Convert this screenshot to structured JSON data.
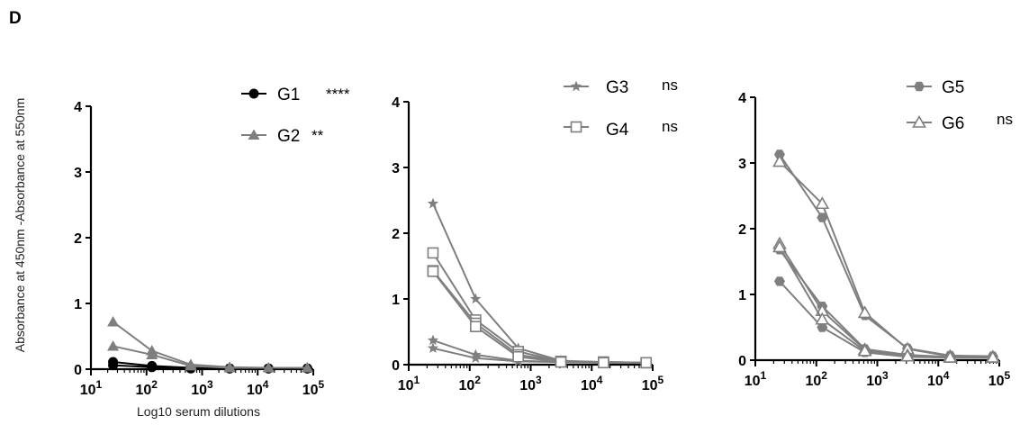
{
  "figure": {
    "panel_label": "D",
    "ylabel": "Absorbance at 450nm -Absorbance at 550nm"
  },
  "colors": {
    "gray": "#7f7f7f",
    "black": "#000000",
    "axis": "#000000"
  },
  "chart_data": [
    {
      "type": "line",
      "xscale": "log",
      "xlim": [
        10,
        100000
      ],
      "ylim": [
        0,
        4
      ],
      "yticks": [
        0,
        1,
        2,
        3,
        4
      ],
      "xticks": [
        10,
        100,
        1000,
        10000,
        100000
      ],
      "xtick_labels": [
        {
          "base": "10",
          "exp": "1"
        },
        {
          "base": "10",
          "exp": "2"
        },
        {
          "base": "10",
          "exp": "3"
        },
        {
          "base": "10",
          "exp": "4"
        },
        {
          "base": "10",
          "exp": "5"
        }
      ],
      "xlabel": "Log10 serum dilutions",
      "series": [
        {
          "name": "G1",
          "significance": "****",
          "marker": "circle",
          "color": "#000000",
          "legend": true,
          "x": [
            25,
            125,
            625,
            3125,
            15625,
            78125
          ],
          "y": [
            0.11,
            0.05,
            0.02,
            0.01,
            0.01,
            0.01
          ]
        },
        {
          "marker": "circle",
          "color": "#000000",
          "legend": false,
          "x": [
            25,
            125,
            625,
            3125,
            15625,
            78125
          ],
          "y": [
            0.06,
            0.03,
            0.01,
            0.01,
            0.01,
            0.01
          ]
        },
        {
          "name": "G2",
          "significance": "**",
          "marker": "triangle",
          "color": "#7f7f7f",
          "legend": true,
          "x": [
            25,
            125,
            625,
            3125,
            15625,
            78125
          ],
          "y": [
            0.72,
            0.28,
            0.07,
            0.03,
            0.02,
            0.02
          ]
        },
        {
          "marker": "triangle",
          "color": "#7f7f7f",
          "legend": false,
          "x": [
            25,
            125,
            625,
            3125,
            15625,
            78125
          ],
          "y": [
            0.35,
            0.22,
            0.05,
            0.02,
            0.02,
            0.02
          ]
        }
      ]
    },
    {
      "type": "line",
      "xscale": "log",
      "xlim": [
        10,
        100000
      ],
      "ylim": [
        0,
        4
      ],
      "yticks": [
        0,
        1,
        2,
        3,
        4
      ],
      "xticks": [
        10,
        100,
        1000,
        10000,
        100000
      ],
      "xtick_labels": [
        {
          "base": "10",
          "exp": "1"
        },
        {
          "base": "10",
          "exp": "2"
        },
        {
          "base": "10",
          "exp": "3"
        },
        {
          "base": "10",
          "exp": "4"
        },
        {
          "base": "10",
          "exp": "5"
        }
      ],
      "xlabel": "",
      "series": [
        {
          "name": "G3",
          "significance": "ns",
          "marker": "star",
          "color": "#7f7f7f",
          "legend": true,
          "x": [
            25,
            125,
            625,
            3125,
            15625,
            78125
          ],
          "y": [
            2.45,
            1.0,
            0.25,
            0.06,
            0.04,
            0.03
          ]
        },
        {
          "marker": "star",
          "color": "#7f7f7f",
          "legend": false,
          "x": [
            25,
            125,
            625,
            3125,
            15625,
            78125
          ],
          "y": [
            0.37,
            0.15,
            0.06,
            0.04,
            0.03,
            0.03
          ]
        },
        {
          "marker": "star",
          "color": "#7f7f7f",
          "legend": false,
          "x": [
            25,
            125,
            625,
            3125,
            15625,
            78125
          ],
          "y": [
            0.25,
            0.1,
            0.05,
            0.04,
            0.03,
            0.03
          ]
        },
        {
          "name": "G4",
          "significance": "ns",
          "marker": "square",
          "color": "#7f7f7f",
          "legend": true,
          "x": [
            25,
            125,
            625,
            3125,
            15625,
            78125
          ],
          "y": [
            1.7,
            0.68,
            0.2,
            0.05,
            0.04,
            0.03
          ]
        },
        {
          "marker": "square",
          "color": "#7f7f7f",
          "legend": false,
          "x": [
            25,
            125,
            625,
            3125,
            15625,
            78125
          ],
          "y": [
            1.43,
            0.63,
            0.15,
            0.05,
            0.04,
            0.03
          ]
        },
        {
          "marker": "square",
          "color": "#7f7f7f",
          "legend": false,
          "x": [
            25,
            125,
            625,
            3125,
            15625,
            78125
          ],
          "y": [
            1.42,
            0.58,
            0.12,
            0.04,
            0.03,
            0.03
          ]
        }
      ]
    },
    {
      "type": "line",
      "xscale": "log",
      "xlim": [
        10,
        100000
      ],
      "ylim": [
        0,
        4
      ],
      "yticks": [
        0,
        1,
        2,
        3,
        4
      ],
      "xticks": [
        10,
        100,
        1000,
        10000,
        100000
      ],
      "xtick_labels": [
        {
          "base": "10",
          "exp": "1"
        },
        {
          "base": "10",
          "exp": "2"
        },
        {
          "base": "10",
          "exp": "3"
        },
        {
          "base": "10",
          "exp": "4"
        },
        {
          "base": "10",
          "exp": "5"
        }
      ],
      "xlabel": "",
      "series": [
        {
          "name": "G5",
          "significance": "",
          "marker": "hexagon",
          "color": "#7f7f7f",
          "legend": true,
          "x": [
            25,
            125,
            625,
            3125,
            15625,
            78125
          ],
          "y": [
            3.13,
            2.17,
            0.68,
            0.18,
            0.07,
            0.06
          ]
        },
        {
          "marker": "hexagon",
          "color": "#7f7f7f",
          "legend": false,
          "x": [
            25,
            125,
            625,
            3125,
            15625,
            78125
          ],
          "y": [
            1.68,
            0.82,
            0.17,
            0.08,
            0.05,
            0.05
          ]
        },
        {
          "marker": "hexagon",
          "color": "#7f7f7f",
          "legend": false,
          "x": [
            25,
            125,
            625,
            3125,
            15625,
            78125
          ],
          "y": [
            1.2,
            0.5,
            0.12,
            0.05,
            0.04,
            0.04
          ]
        },
        {
          "name": "G6",
          "significance": "ns",
          "marker": "open-triangle",
          "color": "#7f7f7f",
          "legend": true,
          "x": [
            25,
            125,
            625,
            3125,
            15625,
            78125
          ],
          "y": [
            3.02,
            2.38,
            0.72,
            0.17,
            0.06,
            0.05
          ]
        },
        {
          "marker": "open-triangle",
          "color": "#7f7f7f",
          "legend": false,
          "x": [
            25,
            125,
            625,
            3125,
            15625,
            78125
          ],
          "y": [
            1.77,
            0.75,
            0.16,
            0.07,
            0.04,
            0.04
          ]
        },
        {
          "marker": "open-triangle",
          "color": "#7f7f7f",
          "legend": false,
          "x": [
            25,
            125,
            625,
            3125,
            15625,
            78125
          ],
          "y": [
            1.72,
            0.62,
            0.14,
            0.06,
            0.04,
            0.04
          ]
        }
      ]
    }
  ]
}
